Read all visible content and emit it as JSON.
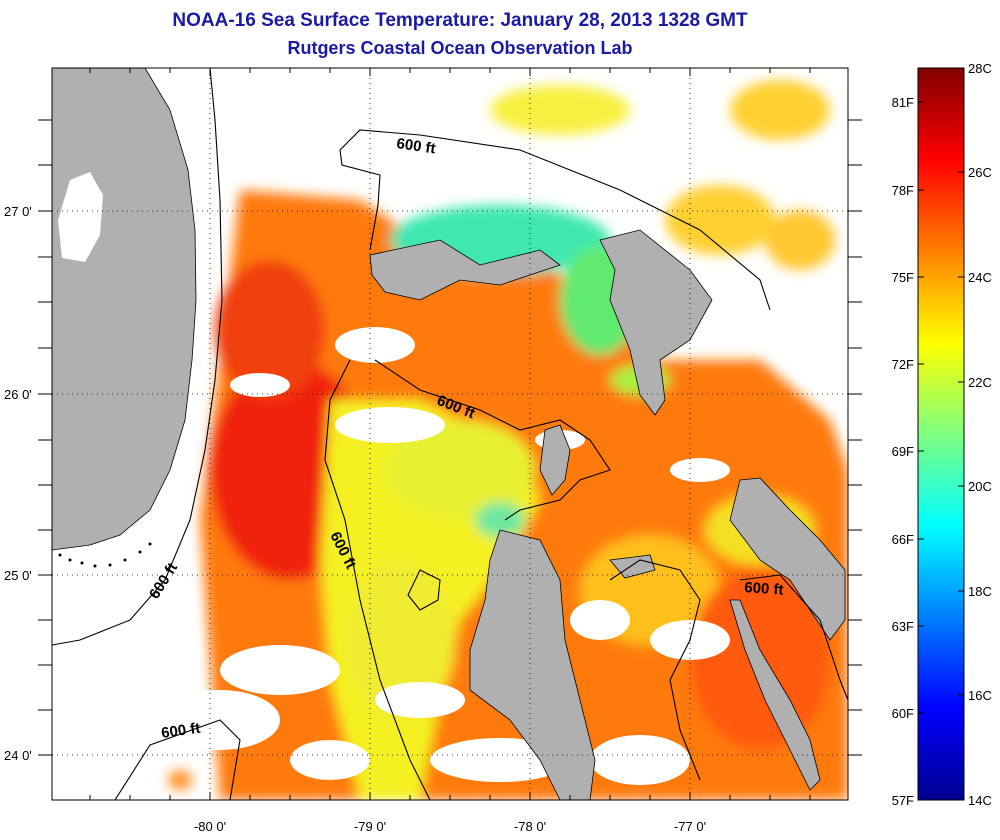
{
  "header": {
    "title": "NOAA-16 Sea Surface Temperature:  January 28, 2013 1328 GMT",
    "subtitle": "Rutgers Coastal Ocean Observation Lab"
  },
  "map": {
    "lon_ticks": [
      "-80 0'",
      "-79 0'",
      "-78 0'",
      "-77 0'"
    ],
    "lat_ticks": [
      "27 0'",
      "26 0'",
      "25 0'",
      "24 0'"
    ],
    "lon_range": [
      -80.95,
      -76.0
    ],
    "lat_range": [
      23.75,
      27.8
    ],
    "contour_labels": [
      "600 ft",
      "600 ft",
      "600 ft",
      "600 ft",
      "600 ft",
      "600 ft"
    ],
    "colors": {
      "land": "#b0b0b0",
      "no_data": "#ffffff",
      "frame": "#000000"
    }
  },
  "colorbar": {
    "celsius": [
      "28C",
      "26C",
      "24C",
      "22C",
      "20C",
      "18C",
      "16C",
      "14C"
    ],
    "fahrenheit": [
      "81F",
      "78F",
      "75F",
      "72F",
      "69F",
      "66F",
      "63F",
      "60F",
      "57F"
    ],
    "range_c": [
      14,
      28
    ],
    "colormap": "jet"
  }
}
